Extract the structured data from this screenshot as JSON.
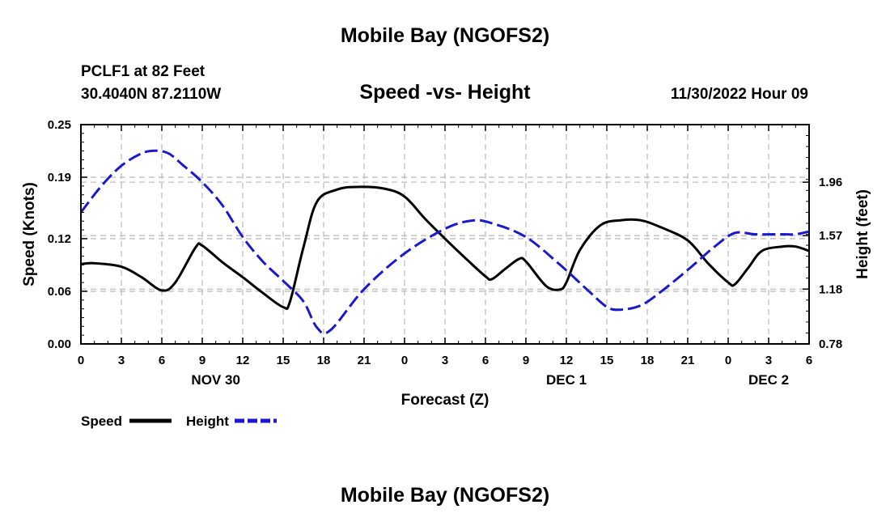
{
  "page": {
    "title": "Mobile Bay (NGOFS2)",
    "station": "PCLF1 at 82 Feet",
    "coords": "30.4040N  87.2110W",
    "datetime": "11/30/2022 Hour 09",
    "footer_title": "Mobile Bay (NGOFS2)"
  },
  "colors": {
    "speed": "#000000",
    "height": "#1a1acc",
    "grid": "#bdbdbd"
  },
  "chart_data": {
    "type": "line",
    "title": "Speed -vs- Height",
    "xlabel": "Forecast (Z)",
    "ylabel": "Speed (Knots)",
    "y2label": "Height (feet)",
    "xlim": [
      0,
      54
    ],
    "ylim": [
      0,
      0.25
    ],
    "y2lim": [
      0.78,
      2.38
    ],
    "x_ticks": [
      0,
      3,
      6,
      9,
      12,
      15,
      18,
      21,
      24,
      27,
      30,
      33,
      36,
      39,
      42,
      45,
      48,
      51,
      54
    ],
    "x_tick_labels": [
      "0",
      "3",
      "6",
      "9",
      "12",
      "15",
      "18",
      "21",
      "0",
      "3",
      "6",
      "9",
      "12",
      "15",
      "18",
      "21",
      "0",
      "3",
      "6"
    ],
    "y_ticks": [
      0.0,
      0.06,
      0.12,
      0.19,
      0.25
    ],
    "y_tick_labels": [
      "0.00",
      "0.06",
      "0.12",
      "0.19",
      "0.25"
    ],
    "y2_ticks": [
      0.78,
      1.18,
      1.57,
      1.96
    ],
    "y2_tick_labels": [
      "0.78",
      "1.18",
      "1.57",
      "1.96"
    ],
    "day_labels": [
      {
        "x": 10,
        "label": "NOV 30"
      },
      {
        "x": 36,
        "label": "DEC 1"
      },
      {
        "x": 51,
        "label": "DEC 2"
      }
    ],
    "grid": true,
    "legend": "bottom-left",
    "series": [
      {
        "name": "Speed",
        "axis": "left",
        "style": "solid",
        "x": [
          0,
          1,
          3,
          4.5,
          6,
          7,
          8.5,
          9,
          10.5,
          12,
          13.5,
          15,
          15.5,
          16.5,
          17.5,
          19,
          20.5,
          22.5,
          24,
          25.5,
          27,
          28.5,
          30,
          30.5,
          31.5,
          32.5,
          33,
          34.5,
          35.5,
          36,
          37,
          38.5,
          40,
          41.5,
          43,
          45,
          46.5,
          48,
          48.5,
          49.5,
          50.5,
          52,
          53,
          54
        ],
        "values": [
          0.091,
          0.092,
          0.088,
          0.076,
          0.061,
          0.07,
          0.11,
          0.112,
          0.093,
          0.076,
          0.058,
          0.042,
          0.048,
          0.11,
          0.162,
          0.176,
          0.179,
          0.177,
          0.168,
          0.143,
          0.12,
          0.098,
          0.077,
          0.074,
          0.086,
          0.097,
          0.094,
          0.066,
          0.062,
          0.07,
          0.107,
          0.135,
          0.141,
          0.141,
          0.133,
          0.118,
          0.092,
          0.07,
          0.068,
          0.087,
          0.106,
          0.111,
          0.111,
          0.106
        ]
      },
      {
        "name": "Height",
        "axis": "right",
        "style": "dashed",
        "x": [
          0,
          1.5,
          3,
          4.5,
          5.5,
          6.5,
          7.5,
          9,
          10.5,
          12,
          13.5,
          15,
          16.5,
          17.5,
          18.5,
          21,
          24,
          27,
          29,
          30.5,
          33,
          35.5,
          37.5,
          39,
          40,
          41.5,
          43,
          45,
          47,
          48.5,
          50,
          52,
          53,
          54
        ],
        "values": [
          1.74,
          1.93,
          2.08,
          2.17,
          2.19,
          2.17,
          2.09,
          1.96,
          1.79,
          1.56,
          1.38,
          1.24,
          1.09,
          0.9,
          0.88,
          1.18,
          1.44,
          1.62,
          1.68,
          1.66,
          1.56,
          1.36,
          1.18,
          1.05,
          1.03,
          1.06,
          1.16,
          1.32,
          1.49,
          1.59,
          1.58,
          1.58,
          1.58,
          1.6
        ]
      }
    ]
  }
}
